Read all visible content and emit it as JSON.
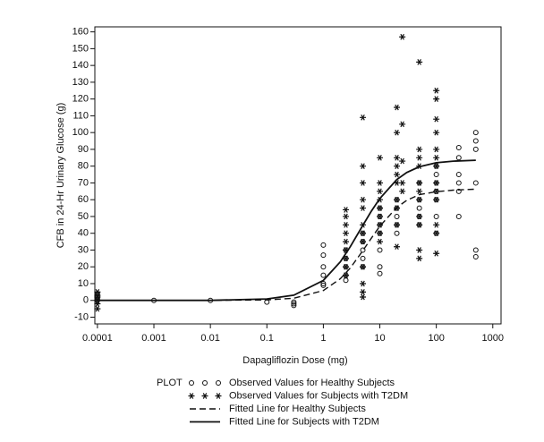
{
  "chart_data": {
    "type": "scatter",
    "x_label": "Dapagliflozin Dose (mg)",
    "y_label": "CFB in 24-Hr Urinary Glucose (g)",
    "xscale": "log",
    "xlim": [
      9e-05,
      1400
    ],
    "xticks": [
      0.0001,
      0.001,
      0.01,
      0.1,
      1,
      10,
      100,
      1000
    ],
    "ylim": [
      -14,
      163
    ],
    "yticks": [
      -10,
      0,
      10,
      20,
      30,
      40,
      50,
      60,
      70,
      80,
      90,
      100,
      110,
      120,
      130,
      140,
      150,
      160
    ],
    "legend_title": "PLOT",
    "series": [
      {
        "name": "Observed Values for Healthy Subjects",
        "type": "scatter",
        "marker": "circle",
        "color": "#111111",
        "x": [
          0.0001,
          0.0001,
          0.0001,
          0.0001,
          0.001,
          0.01,
          0.1,
          0.3,
          0.3,
          0.3,
          1,
          1,
          1,
          1,
          1,
          1,
          2.5,
          2.5,
          2.5,
          2.5,
          2.5,
          5,
          5,
          5,
          5,
          5,
          10,
          10,
          10,
          10,
          10,
          10,
          10,
          20,
          20,
          20,
          20,
          20,
          50,
          50,
          50,
          50,
          50,
          100,
          100,
          100,
          100,
          100,
          100,
          100,
          250,
          250,
          250,
          250,
          250,
          250,
          500,
          500,
          500,
          500,
          500,
          500
        ],
        "values": [
          4,
          2,
          1,
          0,
          0,
          0,
          -1,
          -1,
          -2,
          -3,
          33,
          27,
          20,
          15,
          10,
          9,
          30,
          25,
          20,
          15,
          12,
          40,
          35,
          30,
          25,
          20,
          55,
          50,
          45,
          40,
          30,
          20,
          16,
          60,
          55,
          50,
          45,
          40,
          70,
          60,
          55,
          50,
          45,
          80,
          75,
          70,
          65,
          60,
          50,
          40,
          91,
          85,
          75,
          70,
          65,
          50,
          100,
          95,
          90,
          70,
          30,
          26
        ]
      },
      {
        "name": "Observed Values for Subjects with T2DM",
        "type": "scatter",
        "marker": "star",
        "color": "#111111",
        "x": [
          0.0001,
          0.0001,
          0.0001,
          0.0001,
          0.0001,
          0.0001,
          2.5,
          2.5,
          2.5,
          2.5,
          2.5,
          2.5,
          2.5,
          2.5,
          2.5,
          5,
          5,
          5,
          5,
          5,
          5,
          5,
          5,
          5,
          5,
          5,
          5,
          10,
          10,
          10,
          10,
          10,
          10,
          10,
          10,
          10,
          20,
          20,
          20,
          20,
          20,
          20,
          20,
          20,
          20,
          20,
          25,
          25,
          25,
          25,
          25,
          50,
          50,
          50,
          50,
          50,
          50,
          50,
          50,
          50,
          50,
          50,
          100,
          100,
          100,
          100,
          100,
          100,
          100,
          100,
          100,
          100,
          100,
          100,
          100
        ],
        "values": [
          5,
          3,
          2,
          0,
          -2,
          -5,
          54,
          50,
          45,
          40,
          35,
          30,
          25,
          20,
          15,
          109,
          80,
          70,
          60,
          55,
          45,
          40,
          35,
          20,
          10,
          5,
          2,
          85,
          70,
          65,
          60,
          55,
          50,
          45,
          40,
          35,
          115,
          100,
          85,
          80,
          75,
          70,
          60,
          55,
          45,
          32,
          157,
          105,
          83,
          70,
          65,
          142,
          90,
          85,
          80,
          70,
          65,
          60,
          50,
          45,
          30,
          25,
          125,
          120,
          108,
          100,
          90,
          85,
          80,
          70,
          65,
          60,
          45,
          40,
          28
        ]
      },
      {
        "name": "Fitted Line for Healthy Subjects",
        "type": "line",
        "dashed": true,
        "color": "#111111",
        "x": [
          0.0001,
          0.01,
          0.1,
          0.3,
          1,
          2,
          3,
          5,
          7,
          10,
          20,
          30,
          50,
          100,
          200,
          500
        ],
        "values": [
          0,
          0,
          0.3,
          1.3,
          5.9,
          12.9,
          19.3,
          29.6,
          36.8,
          44.2,
          55.4,
          59.6,
          63,
          64.8,
          65.7,
          66.3
        ]
      },
      {
        "name": "Fitted Line for Subjects with T2DM",
        "type": "line",
        "dashed": false,
        "color": "#111111",
        "x": [
          0.0001,
          0.01,
          0.1,
          0.3,
          1,
          2,
          3,
          5,
          7,
          10,
          20,
          30,
          50,
          100,
          200,
          500
        ],
        "values": [
          0,
          0,
          0.9,
          3.1,
          11.9,
          23,
          32,
          44.7,
          52.9,
          60.7,
          72,
          76.2,
          79.6,
          82,
          83,
          83.5
        ]
      }
    ]
  }
}
